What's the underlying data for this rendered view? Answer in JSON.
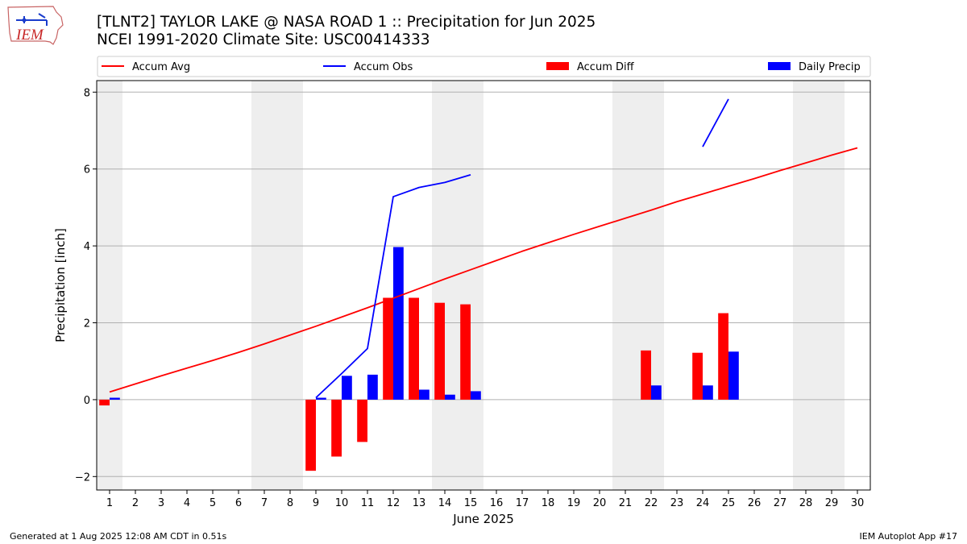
{
  "header": {
    "title_line1": "[TLNT2] TAYLOR LAKE @ NASA ROAD 1 :: Precipitation for Jun 2025",
    "title_line2": "NCEI 1991-2020 Climate Site: USC00414333"
  },
  "logo": {
    "text": "IEM",
    "icon": "iowa-state-outline-logo"
  },
  "footer": {
    "generated": "Generated at 1 Aug 2025 12:08 AM CDT in 0.51s",
    "app": "IEM Autoplot App #17"
  },
  "chart_data": {
    "type": "bar",
    "xlabel": "June 2025",
    "ylabel": "Precipitation [inch]",
    "xlim": [
      0.5,
      30.5
    ],
    "ylim": [
      -2.35,
      8.3
    ],
    "yticks": [
      -2,
      0,
      2,
      4,
      6,
      8
    ],
    "grid": "horizontal",
    "legend_placement": "top",
    "weekend_shading_days": [
      1,
      7,
      8,
      14,
      15,
      21,
      22,
      28,
      29
    ],
    "colors": {
      "accum_avg": "#ff0000",
      "accum_obs": "#0000ff",
      "accum_diff": "#ff0000",
      "daily_precip": "#0000ff",
      "weekend": "#eeeeee",
      "grid": "#b0b0b0"
    },
    "days": [
      1,
      2,
      3,
      4,
      5,
      6,
      7,
      8,
      9,
      10,
      11,
      12,
      13,
      14,
      15,
      16,
      17,
      18,
      19,
      20,
      21,
      22,
      23,
      24,
      25,
      26,
      27,
      28,
      29,
      30
    ],
    "series": [
      {
        "name": "Accum Avg",
        "kind": "line",
        "values": [
          0.2,
          0.41,
          0.62,
          0.82,
          1.02,
          1.23,
          1.45,
          1.68,
          1.91,
          2.15,
          2.39,
          2.64,
          2.89,
          3.14,
          3.38,
          3.62,
          3.86,
          4.08,
          4.3,
          4.51,
          4.72,
          4.93,
          5.15,
          5.35,
          5.55,
          5.75,
          5.96,
          6.16,
          6.36,
          6.55
        ]
      },
      {
        "name": "Accum Obs",
        "kind": "line",
        "values": [
          null,
          null,
          null,
          null,
          null,
          null,
          null,
          null,
          0.05,
          0.68,
          1.33,
          5.28,
          5.52,
          5.65,
          5.85,
          null,
          null,
          null,
          null,
          null,
          null,
          null,
          null,
          6.58,
          7.82,
          null,
          null,
          null,
          null,
          null
        ]
      },
      {
        "name": "Accum Diff",
        "kind": "bar",
        "values": [
          -0.15,
          null,
          null,
          null,
          null,
          null,
          null,
          null,
          -1.85,
          -1.48,
          -1.1,
          2.65,
          2.65,
          2.52,
          2.48,
          null,
          null,
          null,
          null,
          null,
          null,
          1.28,
          null,
          1.22,
          2.25,
          null,
          null,
          null,
          null,
          null
        ]
      },
      {
        "name": "Daily Precip",
        "kind": "bar",
        "values": [
          0.05,
          null,
          null,
          null,
          null,
          null,
          null,
          null,
          0.05,
          0.62,
          0.65,
          3.97,
          0.26,
          0.13,
          0.22,
          null,
          null,
          null,
          null,
          null,
          null,
          0.37,
          null,
          0.37,
          1.25,
          null,
          null,
          null,
          null,
          null
        ]
      }
    ]
  }
}
